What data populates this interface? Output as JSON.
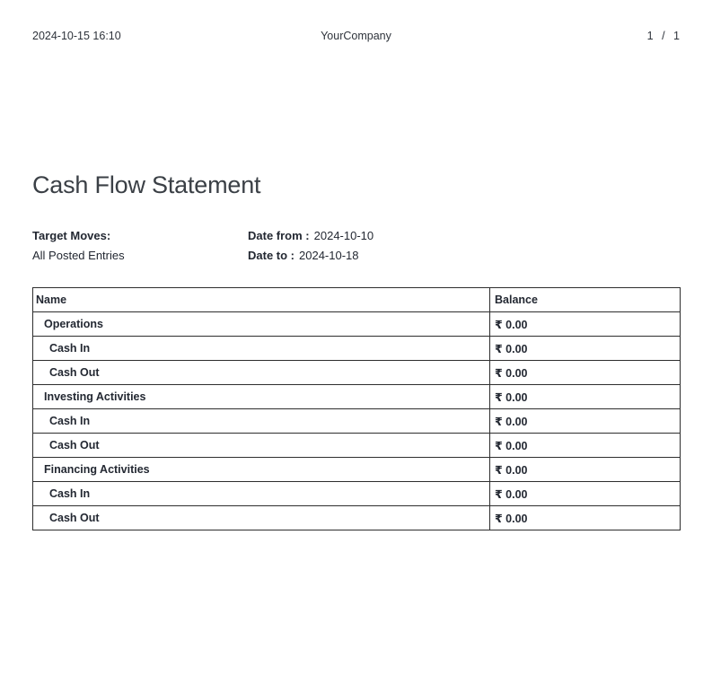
{
  "header": {
    "timestamp": "2024-10-15 16:10",
    "company_name": "YourCompany",
    "page_indicator": "1 / 1"
  },
  "report": {
    "title": "Cash Flow Statement",
    "filters": {
      "target_moves_label": "Target Moves:",
      "target_moves_value": "All Posted Entries",
      "date_from_label": "Date from :",
      "date_from_value": "2024-10-10",
      "date_to_label": "Date to :",
      "date_to_value": "2024-10-18"
    }
  },
  "table": {
    "headers": {
      "name": "Name",
      "balance": "Balance"
    },
    "rows": [
      {
        "name": "Operations",
        "balance": "₹ 0.00",
        "level": 1
      },
      {
        "name": "Cash In",
        "balance": "₹ 0.00",
        "level": 2
      },
      {
        "name": "Cash Out",
        "balance": "₹ 0.00",
        "level": 2
      },
      {
        "name": "Investing Activities",
        "balance": "₹ 0.00",
        "level": 1
      },
      {
        "name": "Cash In",
        "balance": "₹ 0.00",
        "level": 2
      },
      {
        "name": "Cash Out",
        "balance": "₹ 0.00",
        "level": 2
      },
      {
        "name": "Financing Activities",
        "balance": "₹ 0.00",
        "level": 1
      },
      {
        "name": "Cash In",
        "balance": "₹ 0.00",
        "level": 2
      },
      {
        "name": "Cash Out",
        "balance": "₹ 0.00",
        "level": 2
      }
    ]
  },
  "colors": {
    "text": "#232832",
    "title": "#3b4046",
    "table_border": "#2e2e2e",
    "background": "#ffffff"
  }
}
